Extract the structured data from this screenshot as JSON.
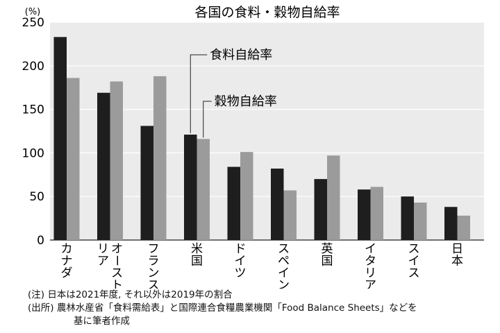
{
  "chart_data": {
    "type": "bar",
    "title": "各国の食料・穀物自給率",
    "y_unit": "(%)",
    "ylim": [
      0,
      250
    ],
    "yticks": [
      0,
      50,
      100,
      150,
      200,
      250
    ],
    "grid": true,
    "categories": [
      "カナダ",
      "オーストラリア",
      "フランス",
      "米国",
      "ドイツ",
      "スペイン",
      "英国",
      "イタリア",
      "スイス",
      "日本"
    ],
    "series": [
      {
        "name": "食料自給率",
        "color": "#1e1e1e",
        "values": [
          233,
          169,
          131,
          121,
          84,
          82,
          70,
          58,
          50,
          38
        ]
      },
      {
        "name": "穀物自給率",
        "color": "#9b9b9b",
        "values": [
          186,
          182,
          188,
          116,
          101,
          57,
          97,
          61,
          43,
          28
        ]
      }
    ],
    "legend_position": "inside, callout labels"
  },
  "notes": {
    "note": "(注) 日本は2021年度, それ以外は2019年の割合",
    "source_line1": "(出所) 農林水産省「食料需給表」と国際連合食糧農業機関「Food Balance Sheets」などを",
    "source_line2": "基に筆者作成"
  }
}
